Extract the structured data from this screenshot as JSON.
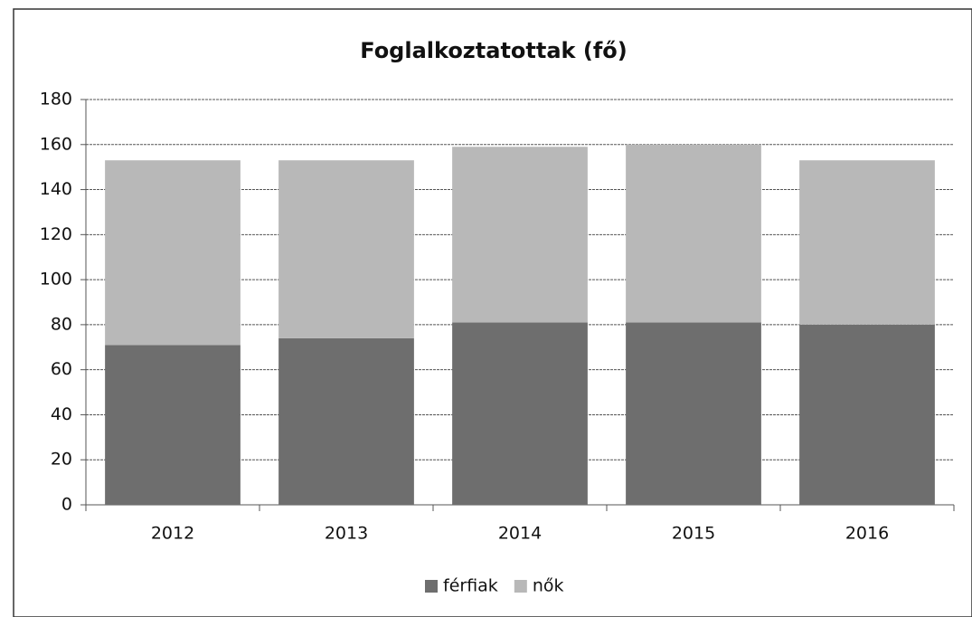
{
  "chart_data": {
    "type": "stacked_bar",
    "title": "Foglalkoztatottak (fő)",
    "categories": [
      "2012",
      "2013",
      "2014",
      "2015",
      "2016"
    ],
    "series": [
      {
        "name": "férfiak",
        "color": "#6e6e6e",
        "values": [
          71,
          74,
          81,
          81,
          80
        ]
      },
      {
        "name": "nők",
        "color": "#b8b8b8",
        "values": [
          82,
          79,
          78,
          79,
          73
        ]
      }
    ],
    "ylim": [
      0,
      180
    ],
    "yticks": [
      0,
      20,
      40,
      60,
      80,
      100,
      120,
      140,
      160,
      180
    ],
    "grid": true,
    "legend": "bottom"
  }
}
